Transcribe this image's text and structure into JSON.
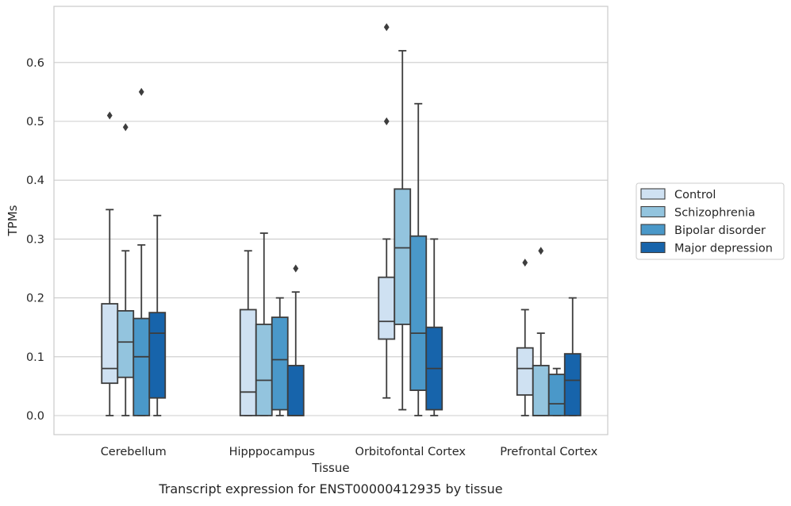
{
  "chart_data": {
    "type": "box",
    "xlabel": "Tissue",
    "ylabel": "TPMs",
    "caption": "Transcript expression for ENST00000412935 by tissue",
    "ylim": [
      -0.032,
      0.693
    ],
    "yticks": [
      "0.0",
      "0.1",
      "0.2",
      "0.3",
      "0.4",
      "0.5",
      "0.6"
    ],
    "ytick_values": [
      0.0,
      0.1,
      0.2,
      0.3,
      0.4,
      0.5,
      0.6
    ],
    "grid": "horizontal",
    "legend_position": "right",
    "categories": [
      "Cerebellum",
      "Hipppocampus",
      "Orbitofontal Cortex",
      "Prefrontal Cortex"
    ],
    "series": [
      {
        "name": "Control",
        "color": "#cfe1f2",
        "boxes": [
          {
            "whislo": 0.0,
            "q1": 0.055,
            "med": 0.08,
            "q3": 0.19,
            "whishi": 0.35,
            "fliers": [
              0.51
            ]
          },
          {
            "whislo": 0.0,
            "q1": 0.0,
            "med": 0.04,
            "q3": 0.18,
            "whishi": 0.28,
            "fliers": []
          },
          {
            "whislo": 0.03,
            "q1": 0.13,
            "med": 0.16,
            "q3": 0.235,
            "whishi": 0.3,
            "fliers": [
              0.5,
              0.66
            ]
          },
          {
            "whislo": 0.0,
            "q1": 0.035,
            "med": 0.08,
            "q3": 0.115,
            "whishi": 0.18,
            "fliers": [
              0.26
            ]
          }
        ]
      },
      {
        "name": "Schizophrenia",
        "color": "#93c4de",
        "boxes": [
          {
            "whislo": 0.0,
            "q1": 0.065,
            "med": 0.125,
            "q3": 0.178,
            "whishi": 0.28,
            "fliers": [
              0.49
            ]
          },
          {
            "whislo": 0.0,
            "q1": 0.0,
            "med": 0.06,
            "q3": 0.155,
            "whishi": 0.31,
            "fliers": []
          },
          {
            "whislo": 0.01,
            "q1": 0.155,
            "med": 0.285,
            "q3": 0.385,
            "whishi": 0.62,
            "fliers": []
          },
          {
            "whislo": 0.0,
            "q1": 0.0,
            "med": 0.0,
            "q3": 0.085,
            "whishi": 0.14,
            "fliers": [
              0.28
            ]
          }
        ]
      },
      {
        "name": "Bipolar disorder",
        "color": "#4a98c9",
        "boxes": [
          {
            "whislo": 0.0,
            "q1": 0.0,
            "med": 0.1,
            "q3": 0.165,
            "whishi": 0.29,
            "fliers": [
              0.55
            ]
          },
          {
            "whislo": 0.0,
            "q1": 0.01,
            "med": 0.095,
            "q3": 0.167,
            "whishi": 0.2,
            "fliers": []
          },
          {
            "whislo": 0.0,
            "q1": 0.043,
            "med": 0.14,
            "q3": 0.305,
            "whishi": 0.53,
            "fliers": []
          },
          {
            "whislo": 0.0,
            "q1": 0.0,
            "med": 0.02,
            "q3": 0.07,
            "whishi": 0.08,
            "fliers": []
          }
        ]
      },
      {
        "name": "Major depression",
        "color": "#1764ab",
        "boxes": [
          {
            "whislo": 0.0,
            "q1": 0.03,
            "med": 0.14,
            "q3": 0.175,
            "whishi": 0.34,
            "fliers": []
          },
          {
            "whislo": 0.0,
            "q1": 0.0,
            "med": 0.0,
            "q3": 0.085,
            "whishi": 0.21,
            "fliers": [
              0.25
            ]
          },
          {
            "whislo": 0.0,
            "q1": 0.01,
            "med": 0.08,
            "q3": 0.15,
            "whishi": 0.3,
            "fliers": []
          },
          {
            "whislo": 0.0,
            "q1": 0.0,
            "med": 0.06,
            "q3": 0.105,
            "whishi": 0.2,
            "fliers": []
          }
        ]
      }
    ]
  }
}
